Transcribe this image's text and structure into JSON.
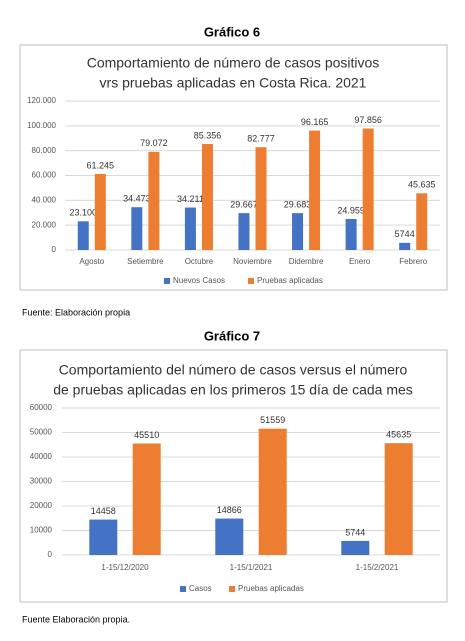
{
  "heading1": "Gráfico 6",
  "source1": "Fuente: Elaboración propia",
  "heading2": "Gráfico 7",
  "source2": "Fuente Elaboración propia.",
  "chart_data": [
    {
      "type": "bar",
      "title": [
        "Comportamiento de  número de casos positivos",
        "vrs pruebas aplicadas en Costa Rica. 2021"
      ],
      "categories": [
        "Agosto",
        "Setiembre",
        "Octubre",
        "Noviembre",
        "Didembre",
        "Enero",
        "Febrero"
      ],
      "series": [
        {
          "name": "Nuevos Casos",
          "color": "#4472c4",
          "values": [
            23100,
            34473,
            34211,
            29667,
            29683,
            24959,
            5744
          ],
          "value_labels": [
            "23.100",
            "34.473",
            "34.211",
            "29.667",
            "29.683",
            "24.959",
            "5744"
          ]
        },
        {
          "name": "Pruebas aplicadas",
          "color": "#ed7d31",
          "values": [
            61245,
            79072,
            85356,
            82777,
            96165,
            97856,
            45635
          ],
          "value_labels": [
            "61.245",
            "79.072",
            "85.356",
            "82.777",
            "96.165",
            "97.856",
            "45.635"
          ]
        }
      ],
      "ylim": [
        0,
        120000
      ],
      "yticks": [
        0,
        {
          "value": 20000,
          "label": "20.000"
        },
        {
          "value": 40000,
          "label": "40.000"
        },
        {
          "value": 60000,
          "label": "60.000"
        },
        {
          "value": 80000,
          "label": "80.000"
        },
        {
          "value": 100000,
          "label": "100.000"
        },
        {
          "value": 120000,
          "label": "120.000"
        }
      ],
      "grid": true,
      "legend": "bottom"
    },
    {
      "type": "bar",
      "title": [
        "Comportamiento del número de casos versus el número",
        "de pruebas aplicadas en los primeros 15 día de cada mes"
      ],
      "categories": [
        "1-15/12/2020",
        "1-15/1/2021",
        "1-15/2/2021"
      ],
      "series": [
        {
          "name": "Casos",
          "color": "#4472c4",
          "values": [
            14458,
            14866,
            5744
          ]
        },
        {
          "name": "Pruebas aplicadas",
          "color": "#ed7d31",
          "values": [
            45510,
            51559,
            45635
          ]
        }
      ],
      "ylim": [
        0,
        60000
      ],
      "yticks": [
        0,
        10000,
        20000,
        30000,
        40000,
        50000,
        60000
      ],
      "grid": true,
      "legend": "bottom"
    }
  ]
}
